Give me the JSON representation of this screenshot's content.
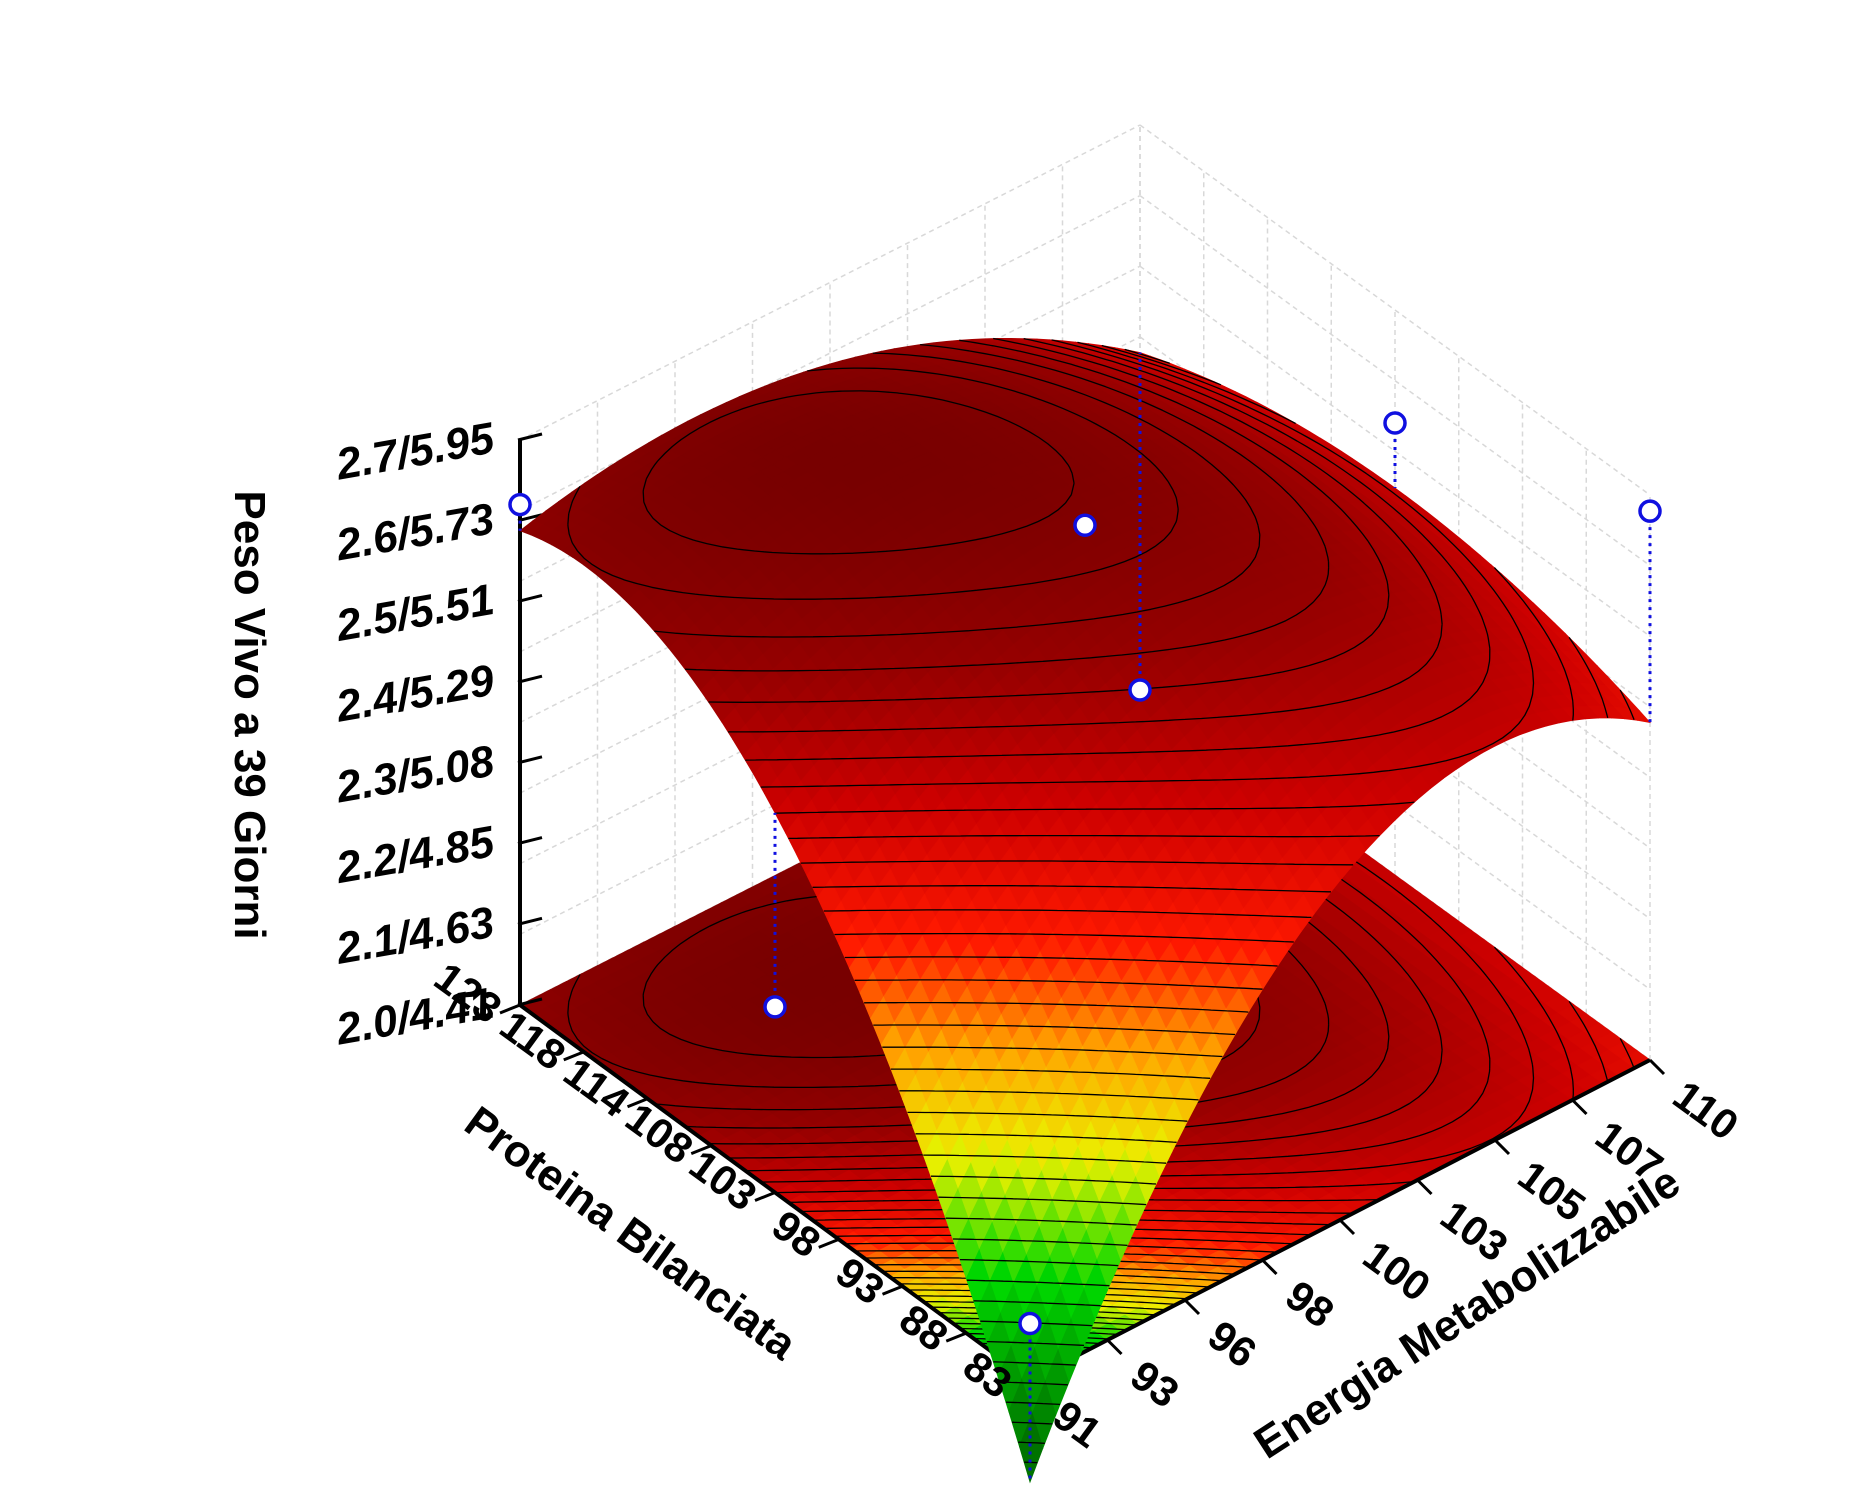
{
  "chart_data": {
    "type": "surface3d",
    "zlabel": "Peso Vivo a 39 Giorni",
    "xlabel": "Proteina Bilanciata",
    "ylabel": "Energia Metabolizzabile",
    "z_ticks": [
      "2.0/4.41",
      "2.1/4.63",
      "2.2/4.85",
      "2.3/5.08",
      "2.4/5.29",
      "2.5/5.51",
      "2.6/5.73",
      "2.7/5.95"
    ],
    "x_ticks": [
      "83",
      "88",
      "93",
      "98",
      "103",
      "108",
      "114",
      "118",
      "123"
    ],
    "y_ticks": [
      "91",
      "93",
      "96",
      "98",
      "100",
      "103",
      "105",
      "107",
      "110"
    ],
    "zlim": [
      2.0,
      2.7
    ],
    "grid": true,
    "colormap": [
      "#006400",
      "#00d000",
      "#eeee00",
      "#ff7f00",
      "#ff0000",
      "#c00000",
      "#800000"
    ],
    "contours": true,
    "points": [
      {
        "x": 123,
        "y": 91,
        "z": 2.62
      },
      {
        "x": 103,
        "y": 100.5,
        "z": 2.63
      },
      {
        "x": 83,
        "y": 110,
        "z": 2.68
      },
      {
        "x": 103,
        "y": 110,
        "z": 2.56
      },
      {
        "x": 123,
        "y": 110,
        "z": 2.0
      },
      {
        "x": 83,
        "y": 91,
        "z": 2.07
      },
      {
        "x": 103,
        "y": 91,
        "z": 2.23
      }
    ],
    "point_color": "#1010e0"
  }
}
